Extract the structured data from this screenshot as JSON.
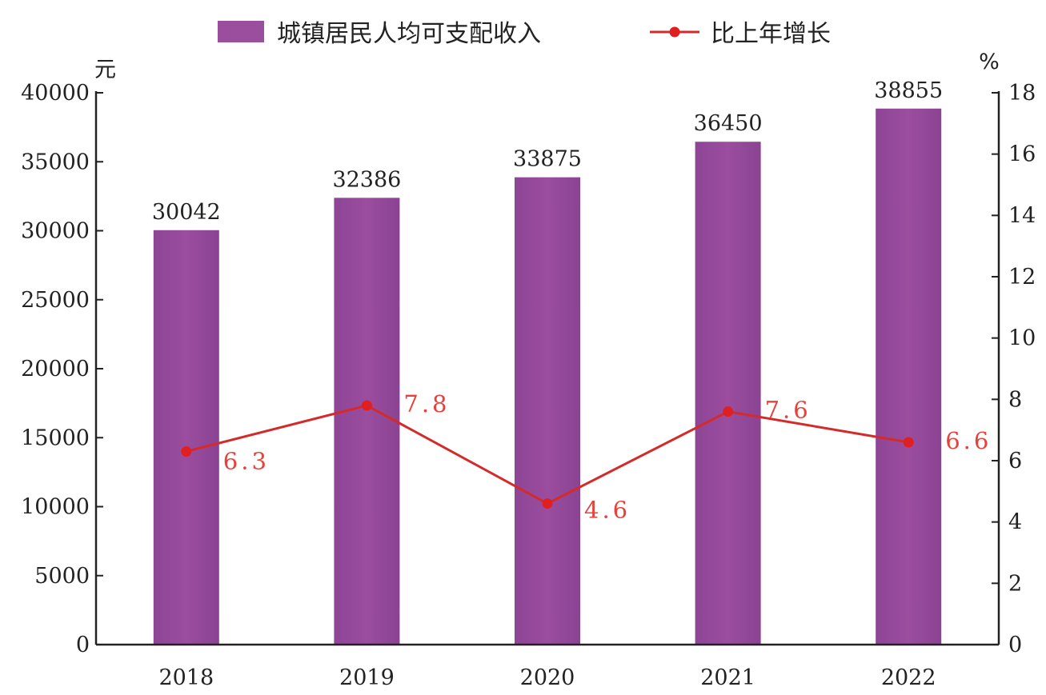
{
  "chart_data": {
    "type": "bar",
    "categories": [
      "2018",
      "2019",
      "2020",
      "2021",
      "2022"
    ],
    "series": [
      {
        "name": "城镇居民人均可支配收入",
        "type": "bar",
        "axis": "left",
        "values": [
          30042,
          32386,
          33875,
          36450,
          38855
        ],
        "labels": [
          "30042",
          "32386",
          "33875",
          "36450",
          "38855"
        ],
        "color": "#9b4d9e"
      },
      {
        "name": "比上年增长",
        "type": "line",
        "axis": "right",
        "values": [
          6.3,
          7.8,
          4.6,
          7.6,
          6.6
        ],
        "labels": [
          "6.3",
          "7.8",
          "4.6",
          "7.6",
          "6.6"
        ],
        "color": "#e8403a"
      }
    ],
    "y_left": {
      "unit": "元",
      "lim": [
        0,
        40000
      ],
      "ticks": [
        0,
        5000,
        10000,
        15000,
        20000,
        25000,
        30000,
        35000,
        40000
      ]
    },
    "y_right": {
      "unit": "%",
      "lim": [
        0,
        18
      ],
      "ticks": [
        0,
        2,
        4,
        6,
        8,
        10,
        12,
        14,
        16,
        18
      ]
    },
    "legend_position": "top",
    "grid": false
  }
}
